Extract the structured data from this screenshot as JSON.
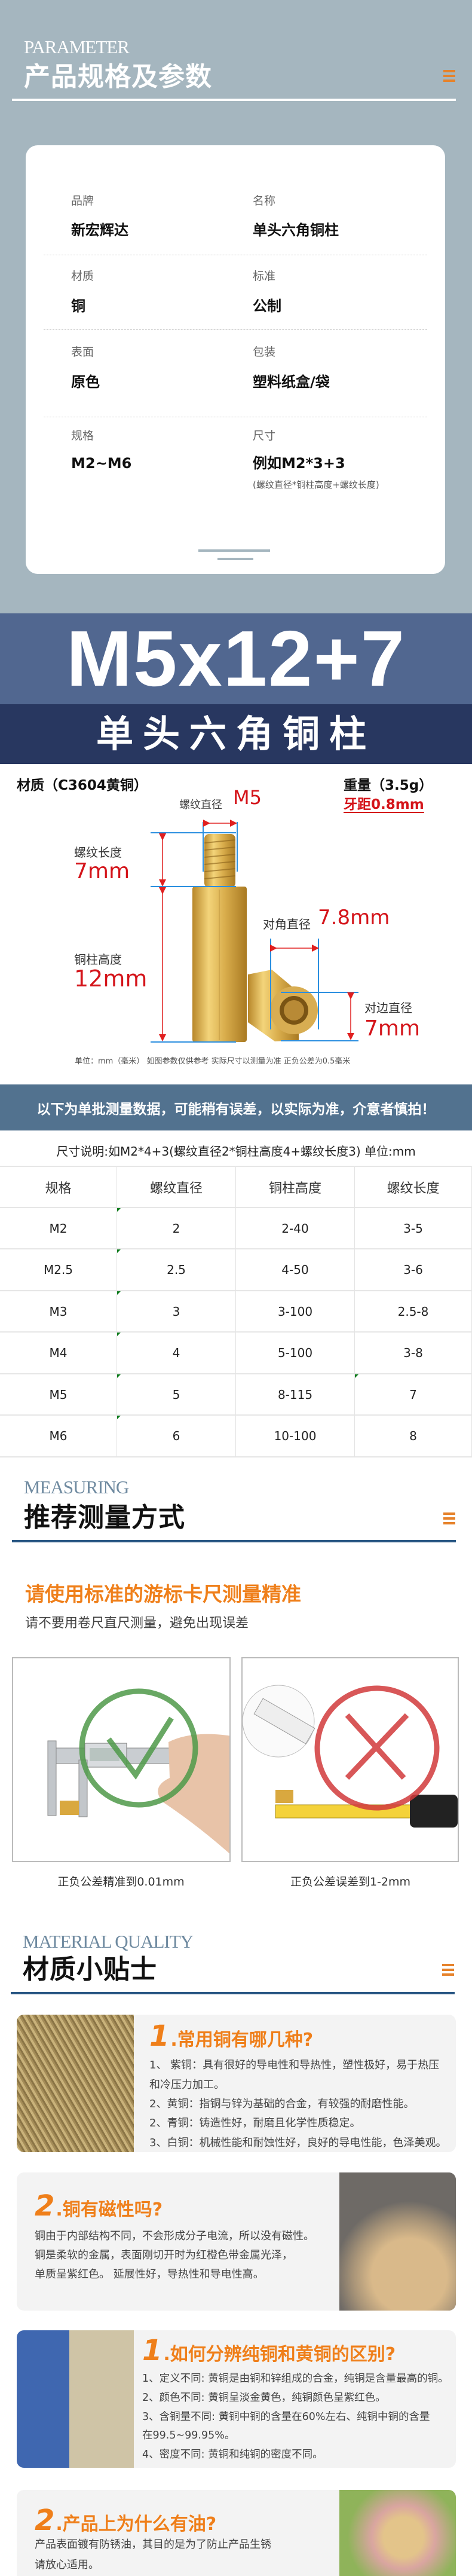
{
  "colors": {
    "section_bg": "#a5b6bf",
    "banner_blue": "#516790",
    "banner_dark": "#283760",
    "accent_orange": "#ef7f1a",
    "notice_band": "#52728f",
    "rule_blue": "#285683",
    "red": "#d4141a"
  },
  "parameter": {
    "en_title": "PARAMETER",
    "title": "产品规格及参数",
    "menu_icon": "menu-icon",
    "specs": [
      {
        "label": "品牌",
        "value": "新宏辉达"
      },
      {
        "label": "名称",
        "value": "单头六角铜柱"
      },
      {
        "label": "材质",
        "value": "铜"
      },
      {
        "label": "标准",
        "value": "公制"
      },
      {
        "label": "表面",
        "value": "原色"
      },
      {
        "label": "包装",
        "value": "塑料纸盒/袋"
      },
      {
        "label": "规格",
        "value": "M2~M6"
      },
      {
        "label": "尺寸",
        "value": "例如M2*3+3",
        "note": "(螺纹直径*铜柱高度+螺纹长度)"
      }
    ]
  },
  "banner": {
    "model": "M5x12+7",
    "name": "单头六角铜柱"
  },
  "diagram": {
    "material": "材质（C3604黄铜）",
    "weight": "重量（3.5g）",
    "pitch": "牙距0.8mm",
    "thread_dia_label": "螺纹直径",
    "thread_dia_value": "M5",
    "thread_len_label": "螺纹长度",
    "thread_len_value": "7mm",
    "height_label": "铜柱高度",
    "height_value": "12mm",
    "diag_label": "对角直径",
    "diag_value": "7.8mm",
    "flat_label": "对边直径",
    "flat_value": "7mm",
    "footnote": "单位：mm（毫米） 如图参数仅供参考 实际尺寸以测量为准 正负公差为0.5毫米"
  },
  "notice": "以下为单批测量数据，可能稍有误差，以实际为准，介意者慎拍！",
  "size_note": "尺寸说明:如M2*4+3(螺纹直径2*铜柱高度4+螺纹长度3) 单位:mm",
  "table": {
    "headers": [
      "规格",
      "螺纹直径",
      "铜柱高度",
      "螺纹长度"
    ],
    "rows": [
      [
        "M2",
        "2",
        "2-40",
        "3-5"
      ],
      [
        "M2.5",
        "2.5",
        "4-50",
        "3-6"
      ],
      [
        "M3",
        "3",
        "3-100",
        "2.5-8"
      ],
      [
        "M4",
        "4",
        "5-100",
        "3-8"
      ],
      [
        "M5",
        "5",
        "8-115",
        "7"
      ],
      [
        "M6",
        "6",
        "10-100",
        "8"
      ]
    ]
  },
  "measuring": {
    "en_title": "MEASURING",
    "title": "推荐测量方式",
    "headline": "请使用标准的游标卡尺测量精准",
    "subline": "请不要用卷尺直尺测量，避免出现误差",
    "good_caption": "正负公差精准到0.01mm",
    "bad_caption": "正负公差误差到1-2mm"
  },
  "material": {
    "en_title": "MATERIAL QUALITY",
    "title": "材质小贴士",
    "cards": [
      {
        "num": "1",
        "title": ".常用铜有哪几种?",
        "lines": [
          "1、 紫铜：具有很好的导电性和导热性，塑性极好，易于热压",
          "和冷压力加工。",
          "2、黄铜：指铜与锌为基础的合金，有较强的耐磨性能。",
          "2、青铜：铸造性好，耐磨且化学性质稳定。",
          "3、白铜：机械性能和耐蚀性好，良好的导电性能，色泽美观。"
        ]
      },
      {
        "num": "2",
        "title": ".铜有磁性吗?",
        "lines": [
          "铜由于内部结构不同，不会形成分子电流，所以没有磁性。",
          "铜是柔软的金属，表面刚切开时为红橙色带金属光泽，",
          "单质呈紫红色。 延展性好，导热性和导电性高。"
        ]
      },
      {
        "num": "1",
        "title": ".如何分辨纯铜和黄铜的区别?",
        "lines": [
          "1、定义不同: 黄铜是由铜和锌组成的合金，纯铜是含量最高的铜。",
          "2、颜色不同: 黄铜呈淡金黄色，纯铜颜色呈紫红色。",
          "3、含铜量不同: 黄铜中铜的含量在60%左右、纯铜中铜的含量",
          "在99.5~99.95%。",
          "4、密度不同: 黄铜和纯铜的密度不同。"
        ]
      },
      {
        "num": "2",
        "title": ".产品上为什么有油?",
        "lines": [
          "产品表面镀有防锈油，其目的是为了防止产品生锈",
          "请放心适用。"
        ]
      }
    ]
  }
}
